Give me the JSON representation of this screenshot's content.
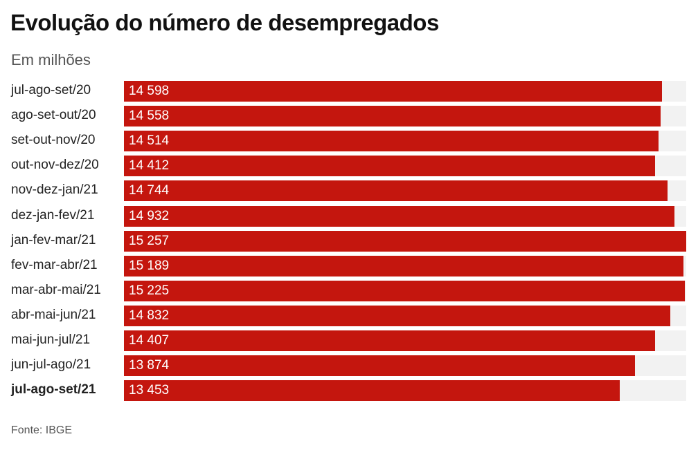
{
  "chart_data": {
    "type": "bar",
    "orientation": "horizontal",
    "title": "Evolução do número de desempregados",
    "subtitle": "Em milhões",
    "source": "Fonte: IBGE",
    "xlim": [
      0,
      15257
    ],
    "bar_color": "#c4160e",
    "track_color": "#f2f2f2",
    "categories": [
      "jul-ago-set/20",
      "ago-set-out/20",
      "set-out-nov/20",
      "out-nov-dez/20",
      "nov-dez-jan/21",
      "dez-jan-fev/21",
      "jan-fev-mar/21",
      "fev-mar-abr/21",
      "mar-abr-mai/21",
      "abr-mai-jun/21",
      "mai-jun-jul/21",
      "jun-jul-ago/21",
      "jul-ago-set/21"
    ],
    "values": [
      14598,
      14558,
      14514,
      14412,
      14744,
      14932,
      15257,
      15189,
      15225,
      14832,
      14407,
      13874,
      13453
    ],
    "value_labels": [
      "14 598",
      "14 558",
      "14 514",
      "14 412",
      "14 744",
      "14 932",
      "15 257",
      "15 189",
      "15 225",
      "14 832",
      "14 407",
      "13 874",
      "13 453"
    ],
    "highlighted_category": "jul-ago-set/21"
  }
}
